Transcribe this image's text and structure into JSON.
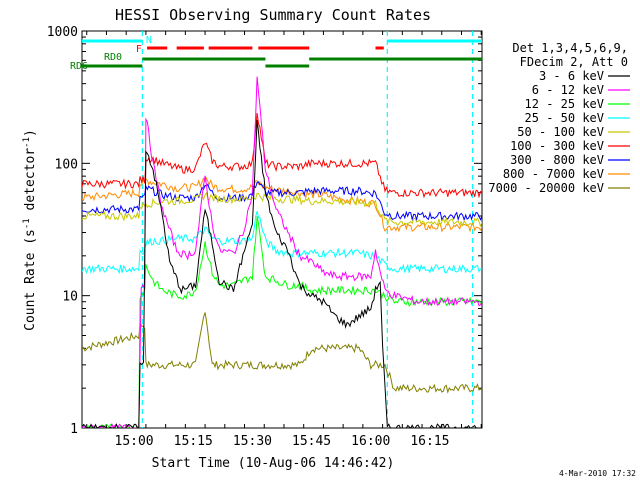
{
  "chart_data": {
    "type": "line",
    "title": "HESSI Observing Summary Count Rates",
    "xlabel": "Start Time (10-Aug-06 14:46:42)",
    "ylabel_main": "Count Rate (s",
    "ylabel_sup1": "-1",
    "ylabel_mid": " detector",
    "ylabel_sup2": "-1",
    "ylabel_end": ")",
    "yscale": "log",
    "ylim": [
      1,
      1000
    ],
    "xlim_minutes": [
      14.78,
      16.47
    ],
    "y_tick_labels": [
      "1",
      "10",
      "100",
      "1000"
    ],
    "x_tick_labels": [
      "15:00",
      "15:15",
      "15:30",
      "15:45",
      "16:00",
      "16:15"
    ],
    "x_tick_hours": [
      15.0,
      15.25,
      15.5,
      15.75,
      16.0,
      16.25
    ],
    "legend_header": [
      "Det 1,3,4,5,6,9,",
      "FDecim 2, Att 0"
    ],
    "footer": "4-Mar-2010 17:32",
    "state_labels": {
      "night": "N",
      "flare": "F",
      "rd0": "RD0",
      "rd6": "RD6"
    },
    "colors": {
      "night": "#00ffff",
      "flare": "#ff0000",
      "rd0": "#008000",
      "rd6": "#008000"
    },
    "night_intervals": [
      [
        14.78,
        15.035
      ],
      [
        16.07,
        16.47
      ]
    ],
    "flare_intervals": [
      [
        15.055,
        15.14
      ],
      [
        15.18,
        15.295
      ],
      [
        15.315,
        15.5
      ],
      [
        15.525,
        15.74
      ],
      [
        16.02,
        16.055
      ]
    ],
    "rd0_intervals": [
      [
        15.035,
        15.555
      ],
      [
        15.74,
        16.47
      ]
    ],
    "rd6_intervals": [
      [
        14.78,
        15.035
      ],
      [
        15.555,
        15.74
      ]
    ],
    "night_dashes": [
      15.035,
      16.07,
      16.43
    ],
    "series": [
      {
        "name": "3 - 6 keV",
        "color": "#000000",
        "points": [
          [
            14.78,
            1
          ],
          [
            15.02,
            1
          ],
          [
            15.025,
            3
          ],
          [
            15.04,
            3
          ],
          [
            15.05,
            130
          ],
          [
            15.08,
            90
          ],
          [
            15.12,
            40
          ],
          [
            15.15,
            18
          ],
          [
            15.2,
            11
          ],
          [
            15.26,
            12
          ],
          [
            15.3,
            45
          ],
          [
            15.33,
            25
          ],
          [
            15.36,
            13
          ],
          [
            15.42,
            11
          ],
          [
            15.46,
            20
          ],
          [
            15.5,
            35
          ],
          [
            15.52,
            200
          ],
          [
            15.555,
            60
          ],
          [
            15.6,
            30
          ],
          [
            15.65,
            22
          ],
          [
            15.7,
            12
          ],
          [
            15.75,
            10
          ],
          [
            15.8,
            9
          ],
          [
            15.85,
            7
          ],
          [
            15.9,
            6
          ],
          [
            15.95,
            7
          ],
          [
            16.0,
            8
          ],
          [
            16.02,
            11
          ],
          [
            16.04,
            13
          ],
          [
            16.05,
            4
          ],
          [
            16.07,
            1
          ],
          [
            16.2,
            1
          ],
          [
            16.47,
            1
          ]
        ]
      },
      {
        "name": "6 - 12 keV",
        "color": "#ff00ff",
        "points": [
          [
            14.78,
            1
          ],
          [
            15.02,
            1
          ],
          [
            15.03,
            12
          ],
          [
            15.045,
            12
          ],
          [
            15.05,
            230
          ],
          [
            15.08,
            100
          ],
          [
            15.12,
            45
          ],
          [
            15.18,
            22
          ],
          [
            15.22,
            20
          ],
          [
            15.26,
            22
          ],
          [
            15.3,
            80
          ],
          [
            15.33,
            35
          ],
          [
            15.36,
            22
          ],
          [
            15.42,
            21
          ],
          [
            15.46,
            30
          ],
          [
            15.5,
            60
          ],
          [
            15.52,
            450
          ],
          [
            15.555,
            90
          ],
          [
            15.6,
            45
          ],
          [
            15.65,
            30
          ],
          [
            15.7,
            20
          ],
          [
            15.75,
            18
          ],
          [
            15.8,
            15
          ],
          [
            15.85,
            14
          ],
          [
            15.9,
            14
          ],
          [
            15.95,
            14
          ],
          [
            16.0,
            14
          ],
          [
            16.02,
            22
          ],
          [
            16.04,
            15
          ],
          [
            16.06,
            11
          ],
          [
            16.1,
            10
          ],
          [
            16.2,
            9
          ],
          [
            16.47,
            9
          ]
        ]
      },
      {
        "name": "12 - 25 keV",
        "color": "#00ff00",
        "points": [
          [
            14.78,
            1
          ],
          [
            15.02,
            1
          ],
          [
            15.025,
            10
          ],
          [
            15.045,
            11
          ],
          [
            15.05,
            17
          ],
          [
            15.08,
            13
          ],
          [
            15.12,
            11
          ],
          [
            15.18,
            10
          ],
          [
            15.22,
            10
          ],
          [
            15.26,
            11
          ],
          [
            15.3,
            25
          ],
          [
            15.33,
            15
          ],
          [
            15.36,
            12
          ],
          [
            15.42,
            12
          ],
          [
            15.46,
            13
          ],
          [
            15.5,
            14
          ],
          [
            15.52,
            40
          ],
          [
            15.555,
            14
          ],
          [
            15.6,
            13
          ],
          [
            15.65,
            12
          ],
          [
            15.7,
            12
          ],
          [
            15.75,
            11
          ],
          [
            15.8,
            11
          ],
          [
            15.85,
            11
          ],
          [
            15.9,
            11
          ],
          [
            15.95,
            11
          ],
          [
            16.0,
            11
          ],
          [
            16.02,
            11
          ],
          [
            16.06,
            10
          ],
          [
            16.1,
            9
          ],
          [
            16.2,
            9
          ],
          [
            16.47,
            9
          ]
        ]
      },
      {
        "name": "25 - 50 keV",
        "color": "#00ffff",
        "points": [
          [
            14.78,
            16
          ],
          [
            15.0,
            16
          ],
          [
            15.02,
            16
          ],
          [
            15.025,
            22
          ],
          [
            15.045,
            22
          ],
          [
            15.05,
            25
          ],
          [
            15.08,
            26
          ],
          [
            15.12,
            26
          ],
          [
            15.18,
            27
          ],
          [
            15.22,
            27
          ],
          [
            15.26,
            27
          ],
          [
            15.3,
            32
          ],
          [
            15.33,
            27
          ],
          [
            15.36,
            26
          ],
          [
            15.42,
            26
          ],
          [
            15.46,
            26
          ],
          [
            15.5,
            27
          ],
          [
            15.52,
            45
          ],
          [
            15.555,
            26
          ],
          [
            15.6,
            22
          ],
          [
            15.65,
            21
          ],
          [
            15.7,
            21
          ],
          [
            15.75,
            21
          ],
          [
            15.8,
            21
          ],
          [
            15.85,
            21
          ],
          [
            15.9,
            21
          ],
          [
            15.95,
            21
          ],
          [
            16.0,
            20
          ],
          [
            16.02,
            20
          ],
          [
            16.06,
            17
          ],
          [
            16.1,
            16
          ],
          [
            16.2,
            16
          ],
          [
            16.47,
            16
          ]
        ]
      },
      {
        "name": "50 - 100 keV",
        "color": "#c8c800",
        "points": [
          [
            14.78,
            40
          ],
          [
            15.02,
            40
          ],
          [
            15.025,
            48
          ],
          [
            15.045,
            48
          ],
          [
            15.05,
            50
          ],
          [
            15.08,
            50
          ],
          [
            15.12,
            52
          ],
          [
            15.18,
            52
          ],
          [
            15.22,
            53
          ],
          [
            15.26,
            53
          ],
          [
            15.3,
            58
          ],
          [
            15.33,
            55
          ],
          [
            15.36,
            54
          ],
          [
            15.42,
            54
          ],
          [
            15.46,
            54
          ],
          [
            15.5,
            55
          ],
          [
            15.52,
            58
          ],
          [
            15.555,
            55
          ],
          [
            15.6,
            54
          ],
          [
            15.65,
            54
          ],
          [
            15.7,
            53
          ],
          [
            15.75,
            52
          ],
          [
            15.8,
            52
          ],
          [
            15.85,
            52
          ],
          [
            15.9,
            51
          ],
          [
            15.95,
            51
          ],
          [
            16.0,
            50
          ],
          [
            16.02,
            50
          ],
          [
            16.06,
            37
          ],
          [
            16.1,
            36
          ],
          [
            16.2,
            36
          ],
          [
            16.47,
            36
          ]
        ]
      },
      {
        "name": "100 - 300 keV",
        "color": "#ff0000",
        "points": [
          [
            14.78,
            70
          ],
          [
            15.02,
            70
          ],
          [
            15.025,
            75
          ],
          [
            15.045,
            75
          ],
          [
            15.05,
            110
          ],
          [
            15.08,
            108
          ],
          [
            15.12,
            100
          ],
          [
            15.18,
            92
          ],
          [
            15.22,
            90
          ],
          [
            15.26,
            92
          ],
          [
            15.3,
            145
          ],
          [
            15.33,
            105
          ],
          [
            15.36,
            95
          ],
          [
            15.42,
            95
          ],
          [
            15.46,
            95
          ],
          [
            15.5,
            100
          ],
          [
            15.52,
            250
          ],
          [
            15.555,
            100
          ],
          [
            15.6,
            95
          ],
          [
            15.65,
            95
          ],
          [
            15.7,
            95
          ],
          [
            15.75,
            100
          ],
          [
            15.8,
            100
          ],
          [
            15.85,
            100
          ],
          [
            15.9,
            100
          ],
          [
            15.95,
            100
          ],
          [
            16.0,
            100
          ],
          [
            16.02,
            100
          ],
          [
            16.06,
            62
          ],
          [
            16.1,
            60
          ],
          [
            16.2,
            60
          ],
          [
            16.47,
            60
          ]
        ]
      },
      {
        "name": "300 - 800 keV",
        "color": "#0000ff",
        "points": [
          [
            14.78,
            45
          ],
          [
            15.02,
            45
          ],
          [
            15.025,
            55
          ],
          [
            15.045,
            55
          ],
          [
            15.05,
            65
          ],
          [
            15.08,
            62
          ],
          [
            15.12,
            58
          ],
          [
            15.18,
            55
          ],
          [
            15.22,
            55
          ],
          [
            15.26,
            55
          ],
          [
            15.3,
            70
          ],
          [
            15.33,
            60
          ],
          [
            15.36,
            55
          ],
          [
            15.42,
            55
          ],
          [
            15.46,
            55
          ],
          [
            15.5,
            58
          ],
          [
            15.52,
            75
          ],
          [
            15.555,
            60
          ],
          [
            15.6,
            60
          ],
          [
            15.65,
            60
          ],
          [
            15.7,
            60
          ],
          [
            15.75,
            62
          ],
          [
            15.8,
            62
          ],
          [
            15.85,
            62
          ],
          [
            15.9,
            62
          ],
          [
            15.95,
            62
          ],
          [
            16.0,
            60
          ],
          [
            16.02,
            60
          ],
          [
            16.06,
            42
          ],
          [
            16.1,
            40
          ],
          [
            16.2,
            40
          ],
          [
            16.47,
            40
          ]
        ]
      },
      {
        "name": "800 - 7000 keV",
        "color": "#ff8c00",
        "points": [
          [
            14.78,
            55
          ],
          [
            15.02,
            60
          ],
          [
            15.025,
            70
          ],
          [
            15.045,
            70
          ],
          [
            15.05,
            75
          ],
          [
            15.08,
            72
          ],
          [
            15.12,
            70
          ],
          [
            15.18,
            65
          ],
          [
            15.22,
            66
          ],
          [
            15.26,
            66
          ],
          [
            15.3,
            78
          ],
          [
            15.33,
            68
          ],
          [
            15.36,
            65
          ],
          [
            15.42,
            64
          ],
          [
            15.46,
            64
          ],
          [
            15.5,
            66
          ],
          [
            15.52,
            72
          ],
          [
            15.555,
            66
          ],
          [
            15.6,
            63
          ],
          [
            15.65,
            62
          ],
          [
            15.7,
            60
          ],
          [
            15.75,
            58
          ],
          [
            15.8,
            58
          ],
          [
            15.85,
            55
          ],
          [
            15.9,
            53
          ],
          [
            15.95,
            52
          ],
          [
            16.0,
            50
          ],
          [
            16.02,
            50
          ],
          [
            16.06,
            33
          ],
          [
            16.1,
            33
          ],
          [
            16.2,
            33
          ],
          [
            16.47,
            33
          ]
        ]
      },
      {
        "name": "7000 - 20000 keV",
        "color": "#808000",
        "points": [
          [
            14.78,
            4
          ],
          [
            15.02,
            5
          ],
          [
            15.025,
            6
          ],
          [
            15.045,
            6
          ],
          [
            15.05,
            3
          ],
          [
            15.08,
            3
          ],
          [
            15.12,
            3
          ],
          [
            15.18,
            3
          ],
          [
            15.22,
            3
          ],
          [
            15.26,
            3
          ],
          [
            15.3,
            8
          ],
          [
            15.33,
            3
          ],
          [
            15.36,
            3
          ],
          [
            15.42,
            3
          ],
          [
            15.46,
            3
          ],
          [
            15.5,
            3
          ],
          [
            15.52,
            3
          ],
          [
            15.555,
            3
          ],
          [
            15.6,
            3
          ],
          [
            15.65,
            3
          ],
          [
            15.7,
            3
          ],
          [
            15.75,
            4
          ],
          [
            15.8,
            4
          ],
          [
            15.85,
            4
          ],
          [
            15.9,
            4
          ],
          [
            15.95,
            4
          ],
          [
            16.0,
            3
          ],
          [
            16.02,
            3
          ],
          [
            16.06,
            3
          ],
          [
            16.1,
            2
          ],
          [
            16.2,
            2
          ],
          [
            16.47,
            2
          ]
        ]
      }
    ]
  }
}
